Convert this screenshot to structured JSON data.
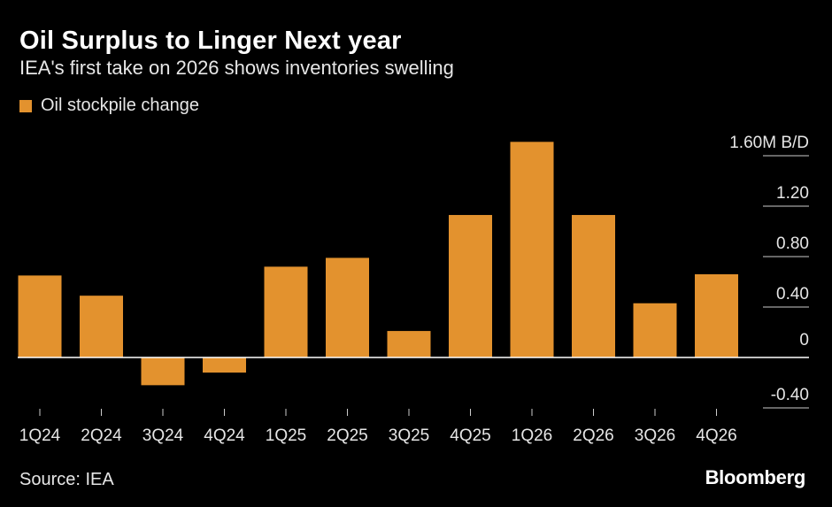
{
  "header": {
    "title": "Oil Surplus to Linger Next year",
    "subtitle": "IEA's first take on 2026 shows inventories swelling"
  },
  "legend": {
    "label": "Oil stockpile change"
  },
  "footer": {
    "source": "Source: IEA",
    "brand": "Bloomberg"
  },
  "colors": {
    "bar": "#e3922e",
    "gridline": "#cccccc",
    "zeroline": "#ffffff",
    "background": "#000000"
  },
  "chart_data": {
    "type": "bar",
    "categories": [
      "1Q24",
      "2Q24",
      "3Q24",
      "4Q24",
      "1Q25",
      "2Q25",
      "3Q25",
      "4Q25",
      "1Q26",
      "2Q26",
      "3Q26",
      "4Q26"
    ],
    "series": [
      {
        "name": "Oil stockpile change",
        "values": [
          0.65,
          0.49,
          -0.22,
          -0.12,
          0.72,
          0.79,
          0.21,
          1.13,
          1.71,
          1.13,
          0.43,
          0.66
        ]
      }
    ],
    "ylim": [
      -0.4,
      1.6
    ],
    "yticks": [
      -0.4,
      0,
      0.4,
      0.8,
      1.2,
      1.6
    ],
    "ytick_labels": [
      "-0.40",
      "0",
      "0.40",
      "0.80",
      "1.20",
      "1.60M B/D"
    ],
    "grid": true,
    "legend_position": "top-left"
  }
}
